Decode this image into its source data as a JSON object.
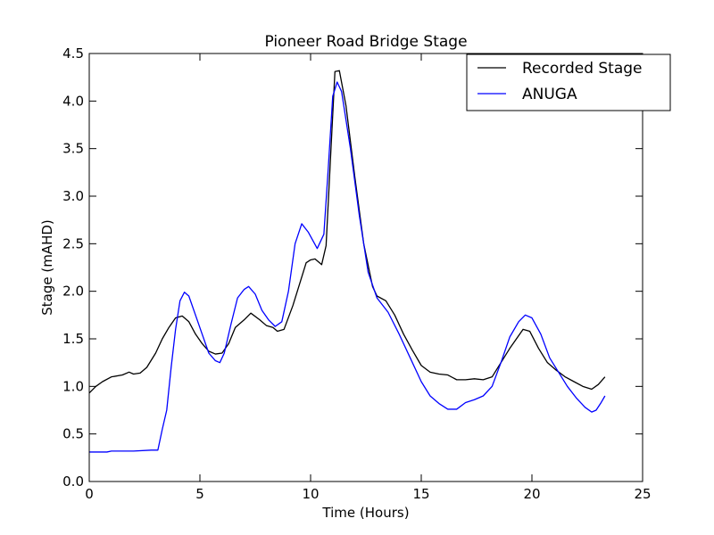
{
  "chart_data": {
    "type": "line",
    "title": "Pioneer Road Bridge Stage",
    "xlabel": "Time (Hours)",
    "ylabel": "Stage (mAHD)",
    "xlim": [
      0,
      25
    ],
    "ylim": [
      0.0,
      4.5
    ],
    "xticks": [
      "0",
      "5",
      "10",
      "15",
      "20",
      "25"
    ],
    "yticks": [
      "0.0",
      "0.5",
      "1.0",
      "1.5",
      "2.0",
      "2.5",
      "3.0",
      "3.5",
      "4.0",
      "4.5"
    ],
    "grid": false,
    "legend": "top-right",
    "series": [
      {
        "name": "Recorded Stage",
        "color": "#000000",
        "points": [
          [
            0.0,
            0.93
          ],
          [
            0.3,
            1.0
          ],
          [
            0.6,
            1.05
          ],
          [
            1.0,
            1.1
          ],
          [
            1.5,
            1.12
          ],
          [
            1.8,
            1.15
          ],
          [
            2.0,
            1.13
          ],
          [
            2.3,
            1.14
          ],
          [
            2.6,
            1.2
          ],
          [
            3.0,
            1.35
          ],
          [
            3.3,
            1.5
          ],
          [
            3.6,
            1.62
          ],
          [
            3.9,
            1.72
          ],
          [
            4.2,
            1.74
          ],
          [
            4.5,
            1.68
          ],
          [
            4.8,
            1.55
          ],
          [
            5.1,
            1.45
          ],
          [
            5.4,
            1.37
          ],
          [
            5.7,
            1.34
          ],
          [
            6.0,
            1.35
          ],
          [
            6.3,
            1.45
          ],
          [
            6.6,
            1.62
          ],
          [
            7.0,
            1.7
          ],
          [
            7.3,
            1.77
          ],
          [
            7.7,
            1.7
          ],
          [
            8.0,
            1.64
          ],
          [
            8.3,
            1.62
          ],
          [
            8.5,
            1.58
          ],
          [
            8.8,
            1.6
          ],
          [
            9.2,
            1.85
          ],
          [
            9.6,
            2.15
          ],
          [
            9.8,
            2.3
          ],
          [
            10.0,
            2.33
          ],
          [
            10.2,
            2.34
          ],
          [
            10.5,
            2.28
          ],
          [
            10.7,
            2.48
          ],
          [
            10.9,
            3.4
          ],
          [
            11.1,
            4.31
          ],
          [
            11.3,
            4.32
          ],
          [
            11.6,
            3.95
          ],
          [
            12.0,
            3.2
          ],
          [
            12.4,
            2.5
          ],
          [
            12.8,
            2.05
          ],
          [
            13.0,
            1.95
          ],
          [
            13.4,
            1.9
          ],
          [
            13.8,
            1.75
          ],
          [
            14.2,
            1.55
          ],
          [
            14.6,
            1.38
          ],
          [
            15.0,
            1.22
          ],
          [
            15.4,
            1.15
          ],
          [
            15.8,
            1.13
          ],
          [
            16.2,
            1.12
          ],
          [
            16.6,
            1.07
          ],
          [
            17.0,
            1.07
          ],
          [
            17.4,
            1.08
          ],
          [
            17.8,
            1.07
          ],
          [
            18.2,
            1.1
          ],
          [
            18.6,
            1.25
          ],
          [
            19.0,
            1.4
          ],
          [
            19.3,
            1.5
          ],
          [
            19.6,
            1.6
          ],
          [
            19.9,
            1.58
          ],
          [
            20.3,
            1.4
          ],
          [
            20.7,
            1.25
          ],
          [
            21.1,
            1.17
          ],
          [
            21.5,
            1.1
          ],
          [
            21.9,
            1.05
          ],
          [
            22.3,
            1.0
          ],
          [
            22.7,
            0.97
          ],
          [
            23.0,
            1.02
          ],
          [
            23.3,
            1.1
          ]
        ]
      },
      {
        "name": "ANUGA",
        "color": "#0000ff",
        "points": [
          [
            0.0,
            0.31
          ],
          [
            0.8,
            0.31
          ],
          [
            1.0,
            0.32
          ],
          [
            2.0,
            0.32
          ],
          [
            2.8,
            0.33
          ],
          [
            3.1,
            0.33
          ],
          [
            3.3,
            0.55
          ],
          [
            3.5,
            0.75
          ],
          [
            3.7,
            1.2
          ],
          [
            3.9,
            1.6
          ],
          [
            4.1,
            1.9
          ],
          [
            4.3,
            1.99
          ],
          [
            4.5,
            1.95
          ],
          [
            4.8,
            1.75
          ],
          [
            5.1,
            1.55
          ],
          [
            5.4,
            1.35
          ],
          [
            5.7,
            1.27
          ],
          [
            5.9,
            1.25
          ],
          [
            6.1,
            1.35
          ],
          [
            6.4,
            1.65
          ],
          [
            6.7,
            1.93
          ],
          [
            7.0,
            2.02
          ],
          [
            7.2,
            2.05
          ],
          [
            7.5,
            1.97
          ],
          [
            7.8,
            1.8
          ],
          [
            8.1,
            1.7
          ],
          [
            8.4,
            1.63
          ],
          [
            8.7,
            1.68
          ],
          [
            9.0,
            2.0
          ],
          [
            9.3,
            2.5
          ],
          [
            9.6,
            2.71
          ],
          [
            9.9,
            2.62
          ],
          [
            10.3,
            2.45
          ],
          [
            10.6,
            2.6
          ],
          [
            10.8,
            3.3
          ],
          [
            11.0,
            4.05
          ],
          [
            11.2,
            4.2
          ],
          [
            11.4,
            4.1
          ],
          [
            11.8,
            3.5
          ],
          [
            12.2,
            2.8
          ],
          [
            12.6,
            2.2
          ],
          [
            13.0,
            1.93
          ],
          [
            13.5,
            1.78
          ],
          [
            14.0,
            1.55
          ],
          [
            14.5,
            1.3
          ],
          [
            15.0,
            1.05
          ],
          [
            15.4,
            0.9
          ],
          [
            15.8,
            0.82
          ],
          [
            16.2,
            0.76
          ],
          [
            16.6,
            0.76
          ],
          [
            17.0,
            0.83
          ],
          [
            17.4,
            0.86
          ],
          [
            17.8,
            0.9
          ],
          [
            18.2,
            1.0
          ],
          [
            18.6,
            1.25
          ],
          [
            19.0,
            1.52
          ],
          [
            19.4,
            1.68
          ],
          [
            19.7,
            1.75
          ],
          [
            20.0,
            1.72
          ],
          [
            20.4,
            1.55
          ],
          [
            20.8,
            1.3
          ],
          [
            21.2,
            1.15
          ],
          [
            21.6,
            1.0
          ],
          [
            22.0,
            0.88
          ],
          [
            22.4,
            0.78
          ],
          [
            22.7,
            0.73
          ],
          [
            22.9,
            0.75
          ],
          [
            23.1,
            0.82
          ],
          [
            23.3,
            0.9
          ]
        ]
      }
    ]
  }
}
